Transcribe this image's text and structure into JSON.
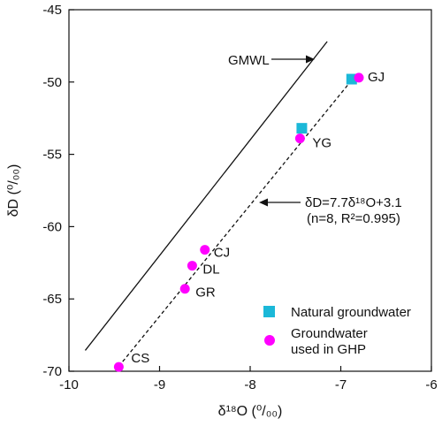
{
  "chart_data": {
    "type": "scatter",
    "x_label": "δ¹⁸O (⁰/₀₀)",
    "y_label": "δD (⁰/₀₀)",
    "xlim": [
      -10,
      -6
    ],
    "ylim": [
      -70,
      -45
    ],
    "x_ticks": [
      "-10",
      "-9",
      "-8",
      "-7",
      "-6"
    ],
    "y_ticks": [
      "-45",
      "-50",
      "-55",
      "-60",
      "-65",
      "-70"
    ],
    "grid": false,
    "legend_position": "bottom-right",
    "series": [
      {
        "name": "Natural groundwater",
        "marker": "square",
        "color": "#1bb8d8",
        "points": [
          {
            "x": -6.88,
            "y": -49.8
          },
          {
            "x": -7.43,
            "y": -53.2
          }
        ]
      },
      {
        "name": "Groundwater used in GHP",
        "legend_lines": [
          "Groundwater",
          "used in GHP"
        ],
        "marker": "circle",
        "color": "#ff00ff",
        "points": [
          {
            "x": -6.8,
            "y": -49.7,
            "label": "GJ"
          },
          {
            "x": -7.45,
            "y": -53.9,
            "label": "YG"
          },
          {
            "x": -8.5,
            "y": -61.6,
            "label": "CJ"
          },
          {
            "x": -8.64,
            "y": -62.7,
            "label": "DL"
          },
          {
            "x": -8.72,
            "y": -64.3,
            "label": "GR"
          },
          {
            "x": -9.45,
            "y": -69.7,
            "label": "CS"
          }
        ]
      }
    ],
    "lines": [
      {
        "name": "GMWL",
        "slope": 8,
        "intercept": 10,
        "x_range": [
          -9.82,
          -7.15
        ],
        "style": "solid"
      },
      {
        "name": "fit",
        "slope": 7.7,
        "intercept": 3.1,
        "x_range": [
          -9.45,
          -6.85
        ],
        "style": "dashed"
      }
    ],
    "annotations": {
      "gmwl": "GMWL",
      "equation_line1": "δD=7.7δ¹⁸O+3.1",
      "equation_line2": "(n=8, R²=0.995)"
    }
  }
}
